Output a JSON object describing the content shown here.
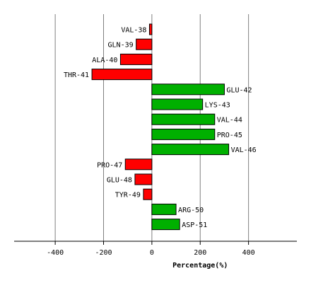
{
  "chart_data": {
    "type": "bar",
    "orientation": "horizontal",
    "xlabel": "Percentage(%)",
    "xlim": [
      -570,
      600
    ],
    "xticks": [
      -400,
      -200,
      0,
      200,
      400
    ],
    "grid": true,
    "colors": {
      "positive": "#00b000",
      "negative": "#ff0000",
      "grid": "#808080"
    },
    "categories": [
      "VAL-38",
      "GLN-39",
      "ALA-40",
      "THR-41",
      "GLU-42",
      "LYS-43",
      "VAL-44",
      "PRO-45",
      "VAL-46",
      "PRO-47",
      "GLU-48",
      "TYR-49",
      "ARG-50",
      "ASP-51"
    ],
    "values": [
      -10,
      -65,
      -130,
      -248,
      300,
      210,
      260,
      260,
      318,
      -110,
      -70,
      -35,
      100,
      115
    ]
  }
}
